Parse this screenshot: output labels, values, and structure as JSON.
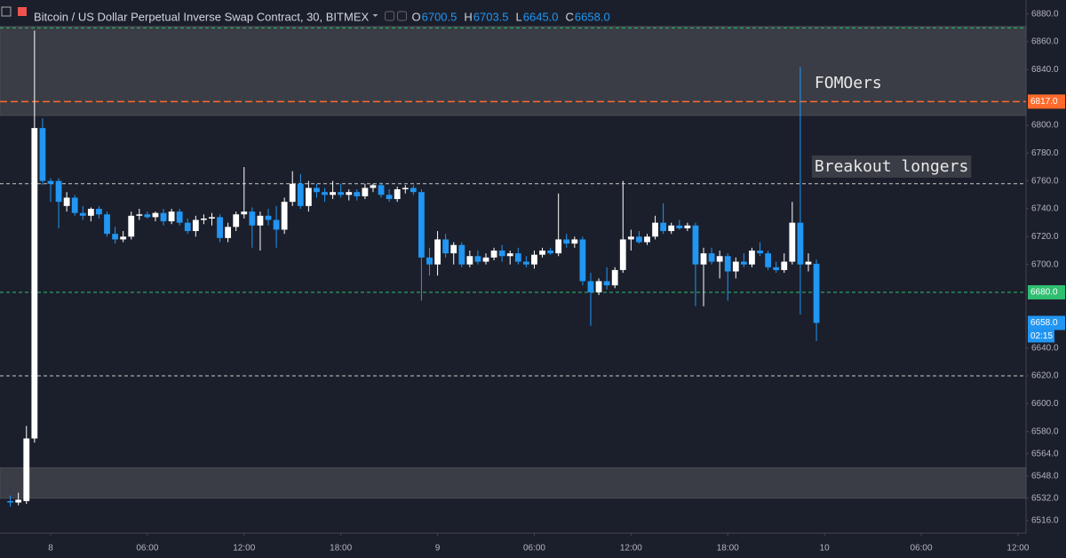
{
  "chart_data": {
    "type": "candlestick",
    "header": {
      "symbol": "Bitcoin / US Dollar Perpetual Inverse Swap Contract, 30, BITMEX",
      "ohlc": [
        {
          "key": "O",
          "value": "6700.5"
        },
        {
          "key": "H",
          "value": "6703.5"
        },
        {
          "key": "L",
          "value": "6645.0"
        },
        {
          "key": "C",
          "value": "6658.0"
        }
      ]
    },
    "x": [
      -2.5,
      -2,
      -1.5,
      -1,
      -0.5,
      0,
      0.5,
      1,
      1.5,
      2,
      2.5,
      3,
      3.5,
      4,
      4.5,
      5,
      5.5,
      6,
      6.5,
      7,
      7.5,
      8,
      8.5,
      9,
      9.5,
      10,
      10.5,
      11,
      11.5,
      12,
      12.5,
      13,
      13.5,
      14,
      14.5,
      15,
      15.5,
      16,
      16.5,
      17,
      17.5,
      18,
      18.5,
      19,
      19.5,
      20,
      20.5,
      21,
      21.5,
      22,
      22.5,
      23,
      23.5,
      24,
      24.5,
      25,
      25.5,
      26,
      26.5,
      27,
      27.5,
      28,
      28.5,
      29,
      29.5,
      30,
      30.5,
      31,
      31.5,
      32,
      32.5,
      33,
      33.5,
      34,
      34.5,
      35,
      35.5,
      36,
      36.5,
      37,
      37.5,
      38,
      38.5,
      39,
      39.5,
      40,
      40.5,
      41,
      41.5,
      42,
      42.5,
      43,
      43.5,
      44,
      44.5,
      45,
      45.5,
      46,
      46.5,
      47,
      47.5
    ],
    "open": [
      6530,
      6529,
      6530,
      6575,
      6798,
      6760,
      6760,
      6742,
      6748,
      6737,
      6735,
      6740,
      6736,
      6722,
      6718,
      6720,
      6735,
      6736,
      6734,
      6737,
      6731,
      6738,
      6730,
      6724,
      6732,
      6733,
      6734,
      6719,
      6727,
      6736,
      6738,
      6728,
      6735,
      6732,
      6725,
      6745,
      6758,
      6742,
      6755,
      6752,
      6750,
      6752,
      6750,
      6752,
      6749,
      6755,
      6757,
      6750,
      6747,
      6754,
      6755,
      6752,
      6705,
      6700,
      6718,
      6708,
      6714,
      6700,
      6706,
      6702,
      6705,
      6710,
      6706,
      6708,
      6702,
      6700,
      6707,
      6710,
      6708,
      6718,
      6715,
      6718,
      6688,
      6680,
      6688,
      6685,
      6696,
      6718,
      6720,
      6716,
      6720,
      6730,
      6724,
      6728,
      6726,
      6728,
      6700,
      6708,
      6702,
      6706,
      6695,
      6702,
      6700,
      6710,
      6708,
      6698,
      6696,
      6702,
      6730,
      6700,
      6700.5
    ],
    "high": [
      6534,
      6536,
      6584,
      6868,
      6805,
      6762,
      6762,
      6752,
      6750,
      6742,
      6741,
      6742,
      6738,
      6727,
      6724,
      6738,
      6740,
      6738,
      6738,
      6740,
      6740,
      6740,
      6733,
      6735,
      6736,
      6737,
      6736,
      6730,
      6738,
      6770,
      6741,
      6738,
      6740,
      6742,
      6748,
      6767,
      6765,
      6760,
      6758,
      6755,
      6760,
      6758,
      6754,
      6754,
      6758,
      6758,
      6759,
      6754,
      6756,
      6757,
      6757,
      6754,
      6712,
      6724,
      6722,
      6716,
      6716,
      6710,
      6710,
      6708,
      6712,
      6714,
      6710,
      6712,
      6706,
      6710,
      6712,
      6712,
      6751,
      6722,
      6720,
      6720,
      6694,
      6690,
      6698,
      6698,
      6760,
      6725,
      6724,
      6722,
      6735,
      6744,
      6730,
      6732,
      6730,
      6730,
      6712,
      6712,
      6710,
      6708,
      6705,
      6708,
      6712,
      6716,
      6710,
      6702,
      6708,
      6745,
      6842,
      6708,
      6703.5
    ],
    "low": [
      6526,
      6527,
      6528,
      6572,
      6757,
      6745,
      6726,
      6738,
      6735,
      6732,
      6731,
      6733,
      6720,
      6715,
      6716,
      6718,
      6732,
      6733,
      6731,
      6728,
      6729,
      6728,
      6722,
      6720,
      6729,
      6728,
      6716,
      6716,
      6724,
      6733,
      6712,
      6710,
      6728,
      6712,
      6722,
      6742,
      6740,
      6738,
      6748,
      6745,
      6747,
      6748,
      6746,
      6746,
      6747,
      6752,
      6748,
      6745,
      6745,
      6751,
      6750,
      6674,
      6692,
      6692,
      6705,
      6700,
      6698,
      6698,
      6700,
      6700,
      6703,
      6702,
      6700,
      6700,
      6698,
      6697,
      6705,
      6707,
      6706,
      6712,
      6712,
      6685,
      6656,
      6678,
      6682,
      6683,
      6694,
      6710,
      6715,
      6714,
      6718,
      6722,
      6722,
      6725,
      6724,
      6670,
      6670,
      6700,
      6690,
      6674,
      6690,
      6698,
      6698,
      6706,
      6696,
      6694,
      6694,
      6700,
      6664,
      6695,
      6645
    ],
    "close": [
      6529,
      6531,
      6575,
      6798,
      6760,
      6758,
      6745,
      6748,
      6737,
      6735,
      6740,
      6736,
      6722,
      6718,
      6720,
      6735,
      6736,
      6734,
      6737,
      6731,
      6738,
      6730,
      6724,
      6732,
      6733,
      6734,
      6719,
      6727,
      6736,
      6738,
      6728,
      6735,
      6732,
      6725,
      6745,
      6758,
      6742,
      6755,
      6752,
      6750,
      6752,
      6750,
      6752,
      6749,
      6755,
      6757,
      6750,
      6747,
      6754,
      6755,
      6752,
      6705,
      6700,
      6718,
      6708,
      6714,
      6700,
      6706,
      6702,
      6705,
      6710,
      6706,
      6708,
      6702,
      6700,
      6707,
      6710,
      6708,
      6718,
      6715,
      6718,
      6688,
      6680,
      6688,
      6685,
      6696,
      6718,
      6720,
      6716,
      6720,
      6730,
      6724,
      6728,
      6726,
      6728,
      6700,
      6708,
      6702,
      6706,
      6695,
      6702,
      6700,
      6710,
      6708,
      6698,
      6696,
      6702,
      6730,
      6700,
      6702,
      6658
    ],
    "up_color": "#ffffff",
    "down_color": "#2196f3",
    "xlim": [
      -3.14,
      60.5
    ],
    "xticks": [
      {
        "value": 0,
        "label": "8"
      },
      {
        "value": 6,
        "label": "06:00"
      },
      {
        "value": 12,
        "label": "12:00"
      },
      {
        "value": 18,
        "label": "18:00"
      },
      {
        "value": 24,
        "label": "9"
      },
      {
        "value": 30,
        "label": "06:00"
      },
      {
        "value": 36,
        "label": "12:00"
      },
      {
        "value": 42,
        "label": "18:00"
      },
      {
        "value": 48,
        "label": "10"
      },
      {
        "value": 54,
        "label": "06:00"
      },
      {
        "value": 60,
        "label": "12:00"
      }
    ],
    "ylim": [
      6507,
      6890
    ],
    "yticks": [
      {
        "value": 6516,
        "label": "6516.0"
      },
      {
        "value": 6532,
        "label": "6532.0"
      },
      {
        "value": 6548,
        "label": "6548.0"
      },
      {
        "value": 6564,
        "label": "6564.0"
      },
      {
        "value": 6580,
        "label": "6580.0"
      },
      {
        "value": 6600,
        "label": "6600.0"
      },
      {
        "value": 6620,
        "label": "6620.0"
      },
      {
        "value": 6640,
        "label": "6640.0"
      },
      {
        "value": 6700,
        "label": "6700.0"
      },
      {
        "value": 6720,
        "label": "6720.0"
      },
      {
        "value": 6740,
        "label": "6740.0"
      },
      {
        "value": 6760,
        "label": "6760.0"
      },
      {
        "value": 6780,
        "label": "6780.0"
      },
      {
        "value": 6800,
        "label": "6800.0"
      },
      {
        "value": 6840,
        "label": "6840.0"
      },
      {
        "value": 6860,
        "label": "6860.0"
      },
      {
        "value": 6880,
        "label": "6880.0"
      }
    ],
    "grid": false,
    "zones": [
      {
        "from": 6807,
        "to": 6871,
        "color": "#3a3d45"
      },
      {
        "from": 6532,
        "to": 6554,
        "color": "#3a3d45"
      }
    ],
    "levels": [
      {
        "value": 6870,
        "color": "#2fbf71"
      },
      {
        "value": 6817,
        "color": "#ff6a2b",
        "label": "6817.0"
      },
      {
        "value": 6758,
        "color": "#c8c8c8"
      },
      {
        "value": 6680,
        "color": "#2fbf71",
        "label": "6680.0"
      },
      {
        "value": 6620,
        "color": "#c8c8c8"
      }
    ],
    "last_price": {
      "value": 6658,
      "label": "6658.0",
      "countdown": "02:15",
      "color": "#2196f3"
    },
    "annotations": [
      {
        "text": "FOMOers",
        "x": 46.5,
        "y": 6830
      },
      {
        "text": "Breakout longers",
        "x": 46.5,
        "y": 6770
      }
    ]
  }
}
